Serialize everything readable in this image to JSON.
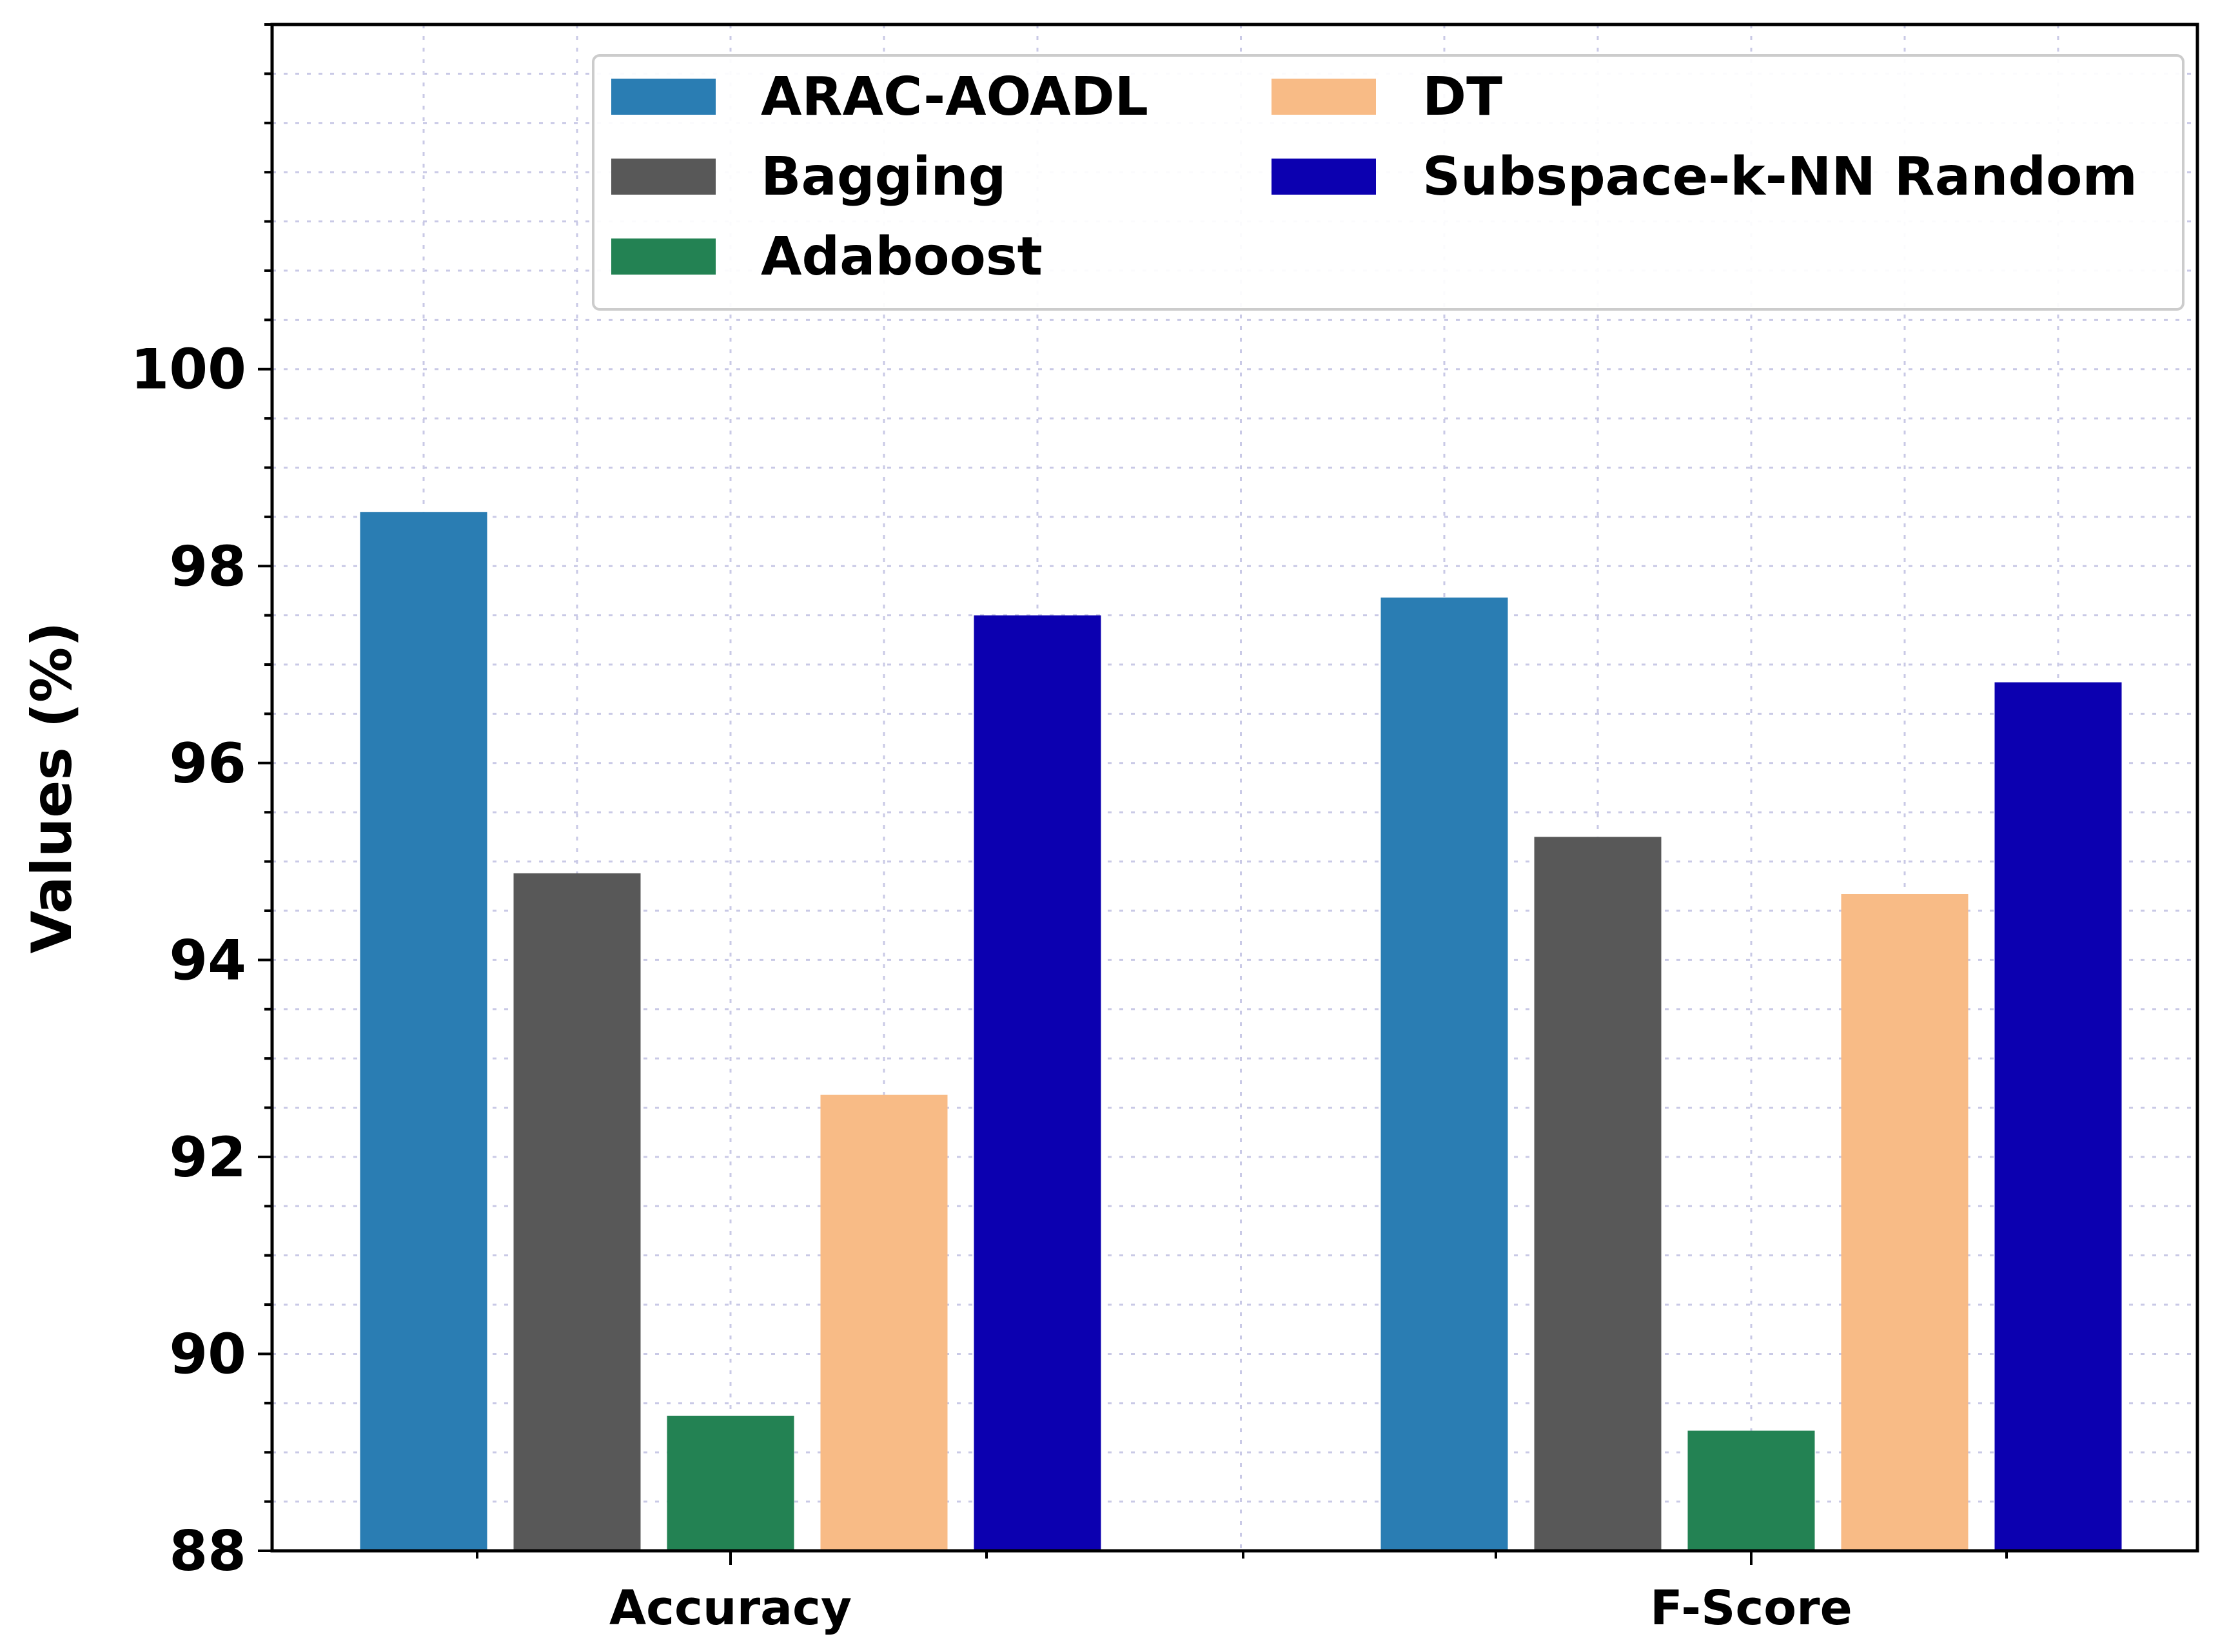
{
  "chart_data": {
    "type": "bar",
    "title": "",
    "xlabel": "",
    "ylabel": "Values (%)",
    "ylim": [
      88,
      103.5
    ],
    "yticks": [
      88,
      90,
      92,
      94,
      96,
      98,
      100
    ],
    "grid": true,
    "legend_position": "top-right",
    "categories": [
      "Accuracy",
      "F-Score"
    ],
    "series": [
      {
        "name": "ARAC-AOADL",
        "color": "#2a7db3",
        "values": [
          98.55,
          97.68
        ]
      },
      {
        "name": "Bagging",
        "color": "#585858",
        "values": [
          94.88,
          95.25
        ]
      },
      {
        "name": "Adaboost",
        "color": "#238253",
        "values": [
          89.37,
          89.22
        ]
      },
      {
        "name": "DT",
        "color": "#f8bb86",
        "values": [
          92.63,
          94.67
        ]
      },
      {
        "name": "Subspace-k-NN Random",
        "color": "#0c00b0",
        "values": [
          97.5,
          96.82
        ]
      }
    ]
  }
}
